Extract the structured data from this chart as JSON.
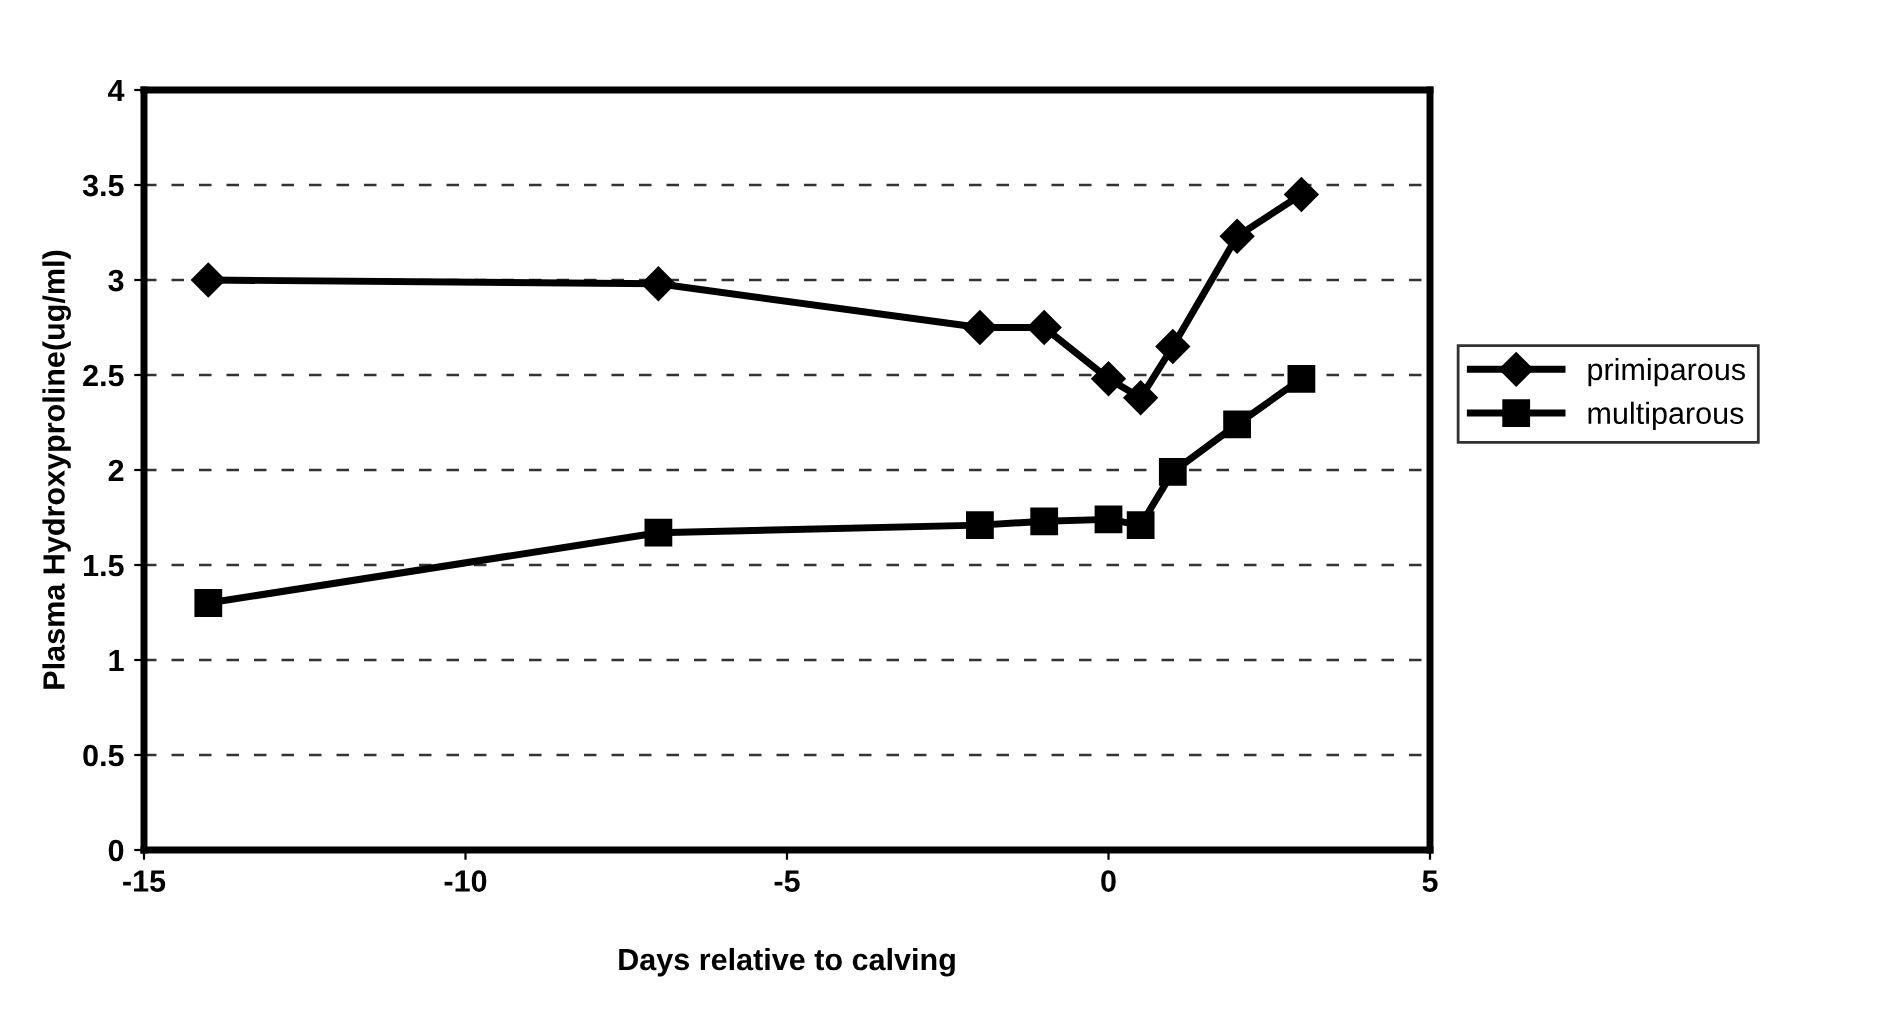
{
  "chart_data": {
    "type": "line",
    "xlabel": "Days relative to calving",
    "ylabel": "Plasma Hydroxyproline(ug/ml)",
    "x": [
      -14,
      -7,
      -2,
      -1,
      0,
      0.5,
      1,
      2,
      3
    ],
    "series": [
      {
        "name": "primiparous",
        "color": "#000000",
        "marker": "diamond",
        "values": [
          3.0,
          2.98,
          2.75,
          2.75,
          2.48,
          2.38,
          2.65,
          3.23,
          3.45
        ]
      },
      {
        "name": "multiparous",
        "color": "#000000",
        "marker": "square",
        "values": [
          1.3,
          1.67,
          1.71,
          1.73,
          1.74,
          1.71,
          1.99,
          2.24,
          2.48
        ]
      }
    ],
    "xlim": [
      -15,
      5
    ],
    "xticks": [
      -15,
      -10,
      -5,
      0,
      5
    ],
    "ylim": [
      0,
      4
    ],
    "yticks": [
      0,
      0.5,
      1,
      1.5,
      2,
      2.5,
      3,
      3.5,
      4
    ],
    "grid": "y",
    "legend": "right",
    "line_style": "solid"
  }
}
